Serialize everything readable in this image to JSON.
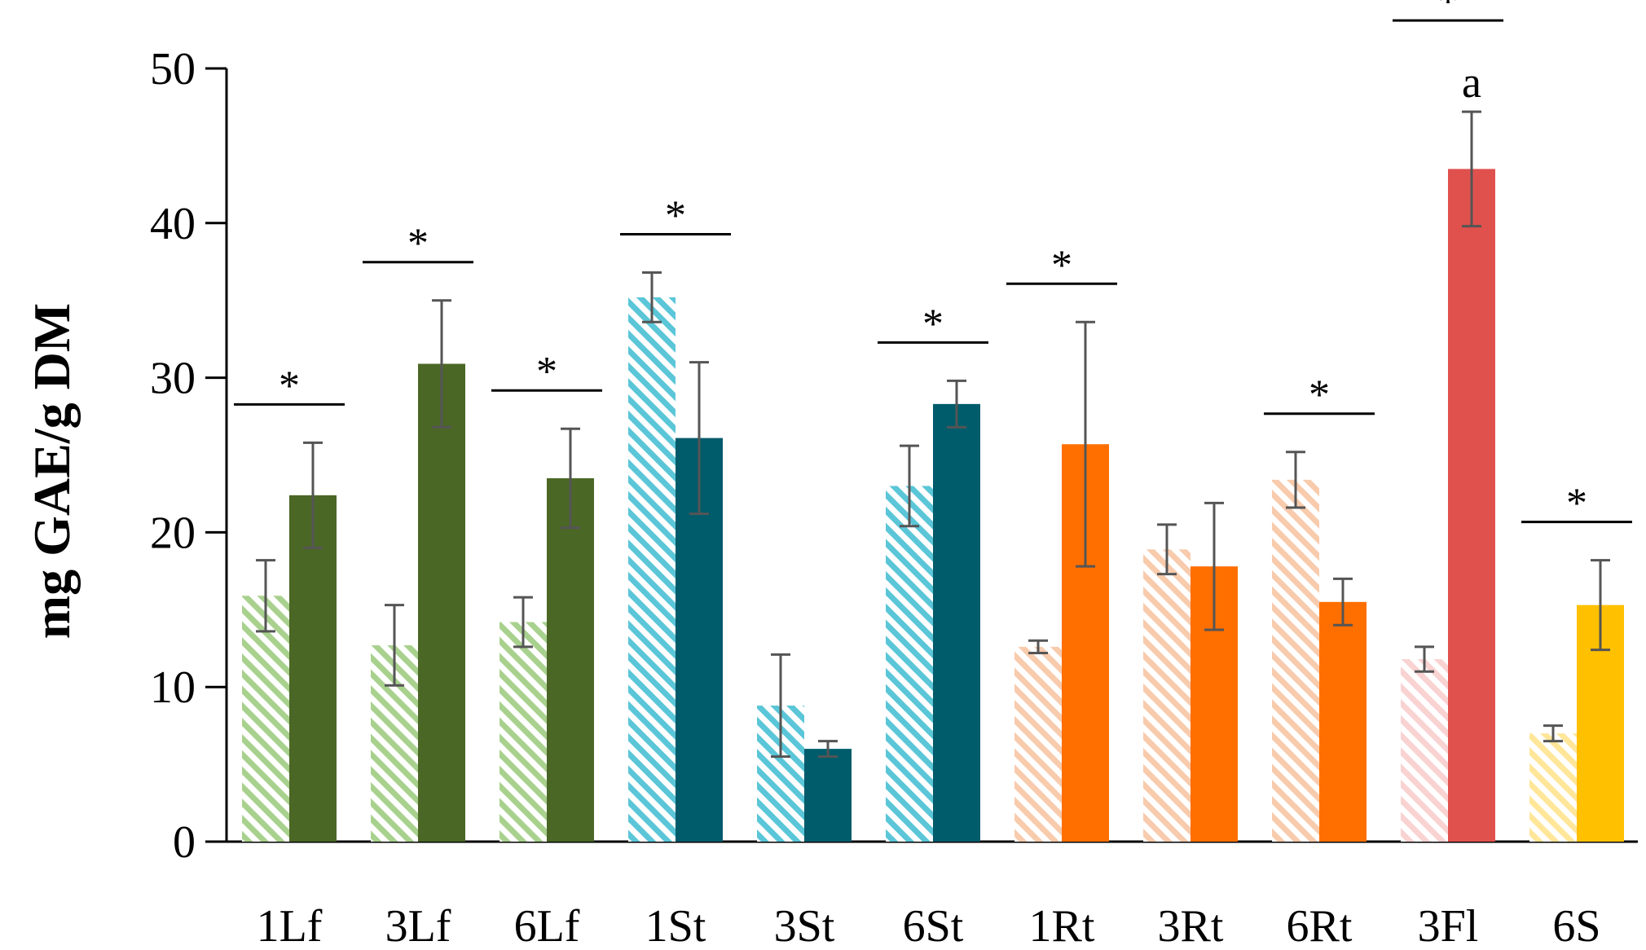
{
  "chart_data": {
    "type": "bar",
    "title": "",
    "xlabel": "",
    "ylabel": "mg  GAE/g DM",
    "ylim": [
      0,
      50
    ],
    "yticks": [
      0,
      10,
      20,
      30,
      40,
      50
    ],
    "grid": false,
    "categories": [
      "1Lf",
      "3Lf",
      "6Lf",
      "1St",
      "3St",
      "6St",
      "1Rt",
      "3Rt",
      "6Rt",
      "3Fl",
      "6S"
    ],
    "series": [
      {
        "name": "hatched",
        "pattern": "diagonal-stripes",
        "values": [
          15.9,
          12.7,
          14.2,
          35.2,
          8.8,
          23.0,
          12.6,
          18.9,
          23.4,
          11.8,
          7.0
        ],
        "errors": [
          2.3,
          2.6,
          1.6,
          1.6,
          3.3,
          2.6,
          0.4,
          1.6,
          1.8,
          0.8,
          0.5
        ],
        "colors": [
          "#a9d18e",
          "#a9d18e",
          "#a9d18e",
          "#5bc6d8",
          "#5bc6d8",
          "#5bc6d8",
          "#f8cbad",
          "#f8cbad",
          "#f8cbad",
          "#f9d2d2",
          "#ffe699"
        ]
      },
      {
        "name": "solid",
        "pattern": "solid",
        "values": [
          22.4,
          30.9,
          23.5,
          26.1,
          6.0,
          28.3,
          25.7,
          17.8,
          15.5,
          43.5,
          15.3
        ],
        "errors": [
          3.4,
          4.1,
          3.2,
          4.9,
          0.5,
          1.5,
          7.9,
          4.1,
          1.5,
          3.7,
          2.9
        ],
        "colors": [
          "#4b6725",
          "#4b6725",
          "#4b6725",
          "#005b6b",
          "#005b6b",
          "#005b6b",
          "#ff6f00",
          "#ff6f00",
          "#ff6f00",
          "#e0514e",
          "#ffc000"
        ]
      }
    ],
    "annotations": {
      "significance_marker": "*",
      "significance_groups": [
        "1Lf",
        "3Lf",
        "6Lf",
        "1St",
        "6St",
        "1Rt",
        "6Rt",
        "3Fl",
        "6S"
      ],
      "letter_label": {
        "category": "3Fl",
        "text": "a"
      }
    }
  }
}
